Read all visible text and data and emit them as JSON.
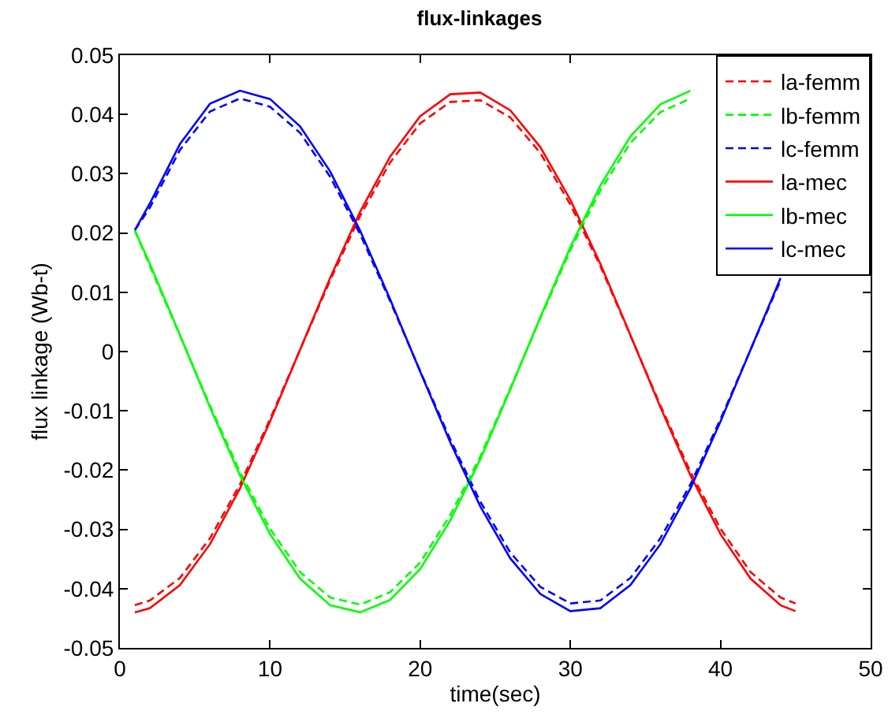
{
  "chart_data": {
    "type": "line",
    "title": "flux-linkages",
    "xlabel": "time(sec)",
    "ylabel": "flux linkage (Wb-t)",
    "x": [
      1,
      2,
      4,
      6,
      8,
      10,
      12,
      14,
      16,
      18,
      20,
      22,
      24,
      26,
      28,
      30,
      32,
      34,
      36,
      38,
      40,
      42,
      44,
      45
    ],
    "xlim": [
      0,
      50
    ],
    "xticks": [
      0,
      10,
      20,
      30,
      40,
      50
    ],
    "ylim": [
      -0.05,
      0.05
    ],
    "yticks": [
      -0.05,
      -0.04,
      -0.03,
      -0.02,
      -0.01,
      0,
      0.01,
      0.02,
      0.03,
      0.04,
      0.05
    ],
    "grid": false,
    "legend": "top right",
    "marker": "none",
    "series": [
      {
        "name": "la-femm",
        "color": "#ff0000",
        "line_style": "dashed",
        "values": [
          -0.0428,
          -0.042,
          -0.0382,
          -0.0315,
          -0.0224,
          -0.0114,
          0.0003,
          0.012,
          0.0229,
          0.0319,
          0.0385,
          0.0421,
          0.0424,
          0.0395,
          0.0335,
          0.0248,
          0.0144,
          0.0027,
          -0.0091,
          -0.0203,
          -0.0299,
          -0.0372,
          -0.0415,
          -0.0425
        ]
      },
      {
        "name": "lb-femm",
        "color": "#00ff00",
        "line_style": "dashed",
        "values": [
          0.0204,
          0.0144,
          0.0027,
          -0.0091,
          -0.0203,
          -0.0299,
          -0.0372,
          -0.0415,
          -0.0427,
          -0.0406,
          -0.0356,
          -0.0276,
          -0.0177,
          -0.0062,
          0.0056,
          0.0171,
          0.0272,
          0.0352,
          0.0404,
          0.0427,
          null,
          null,
          null,
          null
        ]
      },
      {
        "name": "lc-femm",
        "color": "#0000ff",
        "line_style": "dashed",
        "values": [
          0.0205,
          0.0243,
          0.034,
          0.0405,
          0.0427,
          0.0413,
          0.0369,
          0.0295,
          0.0198,
          0.0085,
          -0.0033,
          -0.0148,
          -0.0253,
          -0.0339,
          -0.0397,
          -0.0425,
          -0.042,
          -0.0382,
          -0.0315,
          -0.0224,
          -0.0114,
          0.0003,
          0.012,
          null
        ]
      },
      {
        "name": "la-mec",
        "color": "#ff0000",
        "line_style": "solid",
        "values": [
          -0.044,
          -0.0433,
          -0.0394,
          -0.0325,
          -0.0231,
          -0.0118,
          0.0003,
          0.0124,
          0.0236,
          0.0329,
          0.0397,
          0.0434,
          0.0437,
          0.0407,
          0.0345,
          0.0256,
          0.0148,
          0.0028,
          -0.0094,
          -0.0209,
          -0.0308,
          -0.0383,
          -0.0428,
          -0.0438
        ]
      },
      {
        "name": "lb-mec",
        "color": "#00ff00",
        "line_style": "solid",
        "values": [
          0.0204,
          0.0148,
          0.0028,
          -0.0094,
          -0.0209,
          -0.0308,
          -0.0383,
          -0.0428,
          -0.044,
          -0.0419,
          -0.0367,
          -0.0285,
          -0.0182,
          -0.0064,
          0.0058,
          0.0176,
          0.028,
          0.0363,
          0.0417,
          0.044,
          null,
          null,
          null,
          null
        ]
      },
      {
        "name": "lc-mec",
        "color": "#0000ff",
        "line_style": "solid",
        "values": [
          0.0205,
          0.025,
          0.035,
          0.0418,
          0.044,
          0.0426,
          0.038,
          0.0304,
          0.0204,
          0.0088,
          -0.0034,
          -0.0153,
          -0.0261,
          -0.0349,
          -0.0409,
          -0.0438,
          -0.0433,
          -0.0394,
          -0.0325,
          -0.0231,
          -0.0118,
          0.0003,
          0.0124,
          null
        ]
      }
    ]
  }
}
